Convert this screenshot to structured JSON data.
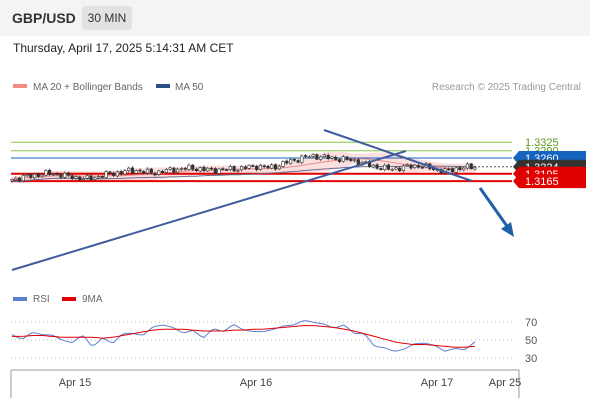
{
  "header": {
    "pair": "GBP/USD",
    "timeframe": "30 MIN",
    "datetime": "Thursday, April 17, 2025 5:14:31 AM CET"
  },
  "price_chart": {
    "legend": [
      {
        "label": "MA 20 + Bollinger Bands",
        "color": "#f28b82"
      },
      {
        "label": "MA 50",
        "color": "#2c4f8a"
      }
    ],
    "credit": "Research © 2025 Trading Central",
    "price_levels": [
      {
        "value": "1.3325",
        "kind": "resistance-target",
        "color": "#7cb342"
      },
      {
        "value": "1.3290",
        "kind": "resistance-target",
        "color": "#7cb342"
      },
      {
        "value": "1.3260",
        "kind": "pivot",
        "color": "#1565c0"
      },
      {
        "value": "1.3224",
        "kind": "last-price",
        "color": "#333333"
      },
      {
        "value": "1.3195",
        "kind": "support-target",
        "color": "#e00000"
      },
      {
        "value": "1.3165",
        "kind": "support-target",
        "color": "#e00000"
      }
    ]
  },
  "rsi_panel": {
    "legend": [
      {
        "label": "RSI",
        "color": "#5b7fd1"
      },
      {
        "label": "9MA",
        "color": "#e00000"
      }
    ],
    "levels": [
      "70",
      "50",
      "30"
    ]
  },
  "x_axis": {
    "labels": [
      "Apr 15",
      "Apr 16",
      "Apr 17",
      "Apr 25"
    ]
  },
  "chart_data": {
    "type": "candlestick",
    "symbol": "GBP/USD",
    "interval": "30 MIN",
    "y_range": [
      1.3135,
      1.334
    ],
    "last_price": 1.3224,
    "pivot": 1.326,
    "resistances": [
      1.329,
      1.3325
    ],
    "supports": [
      1.3195,
      1.3165
    ],
    "bias": "down",
    "x_ticks": [
      "Apr 15",
      "Apr 16",
      "Apr 17",
      "Apr 25"
    ],
    "close_path": [
      1.3172,
      1.318,
      1.3186,
      1.3193,
      1.3196,
      1.3192,
      1.3184,
      1.3178,
      1.3175,
      1.3182,
      1.3192,
      1.3198,
      1.3205,
      1.321,
      1.3203,
      1.3198,
      1.3206,
      1.3212,
      1.3216,
      1.3219,
      1.3214,
      1.321,
      1.3212,
      1.3214,
      1.3216,
      1.3222,
      1.3226,
      1.322,
      1.3226,
      1.3242,
      1.3252,
      1.3264,
      1.3268,
      1.3264,
      1.3258,
      1.3255,
      1.325,
      1.324,
      1.3228,
      1.322,
      1.3214,
      1.3219,
      1.3225,
      1.3228,
      1.3222,
      1.321,
      1.3206,
      1.3216,
      1.3221,
      1.3224
    ],
    "rsi": {
      "levels": [
        70,
        50,
        30
      ],
      "rsi_path": [
        56,
        50,
        60,
        54,
        58,
        47,
        50,
        53,
        45,
        50,
        48,
        56,
        58,
        55,
        64,
        68,
        62,
        60,
        58,
        55,
        60,
        62,
        65,
        63,
        58,
        60,
        62,
        65,
        68,
        70,
        72,
        65,
        66,
        64,
        60,
        55,
        45,
        40,
        38,
        40,
        45,
        48,
        42,
        40,
        38,
        42,
        45
      ],
      "ma_path": [
        54,
        54,
        55,
        55,
        54,
        53,
        53,
        53,
        53,
        52,
        53,
        55,
        57,
        59,
        61,
        62,
        62,
        62,
        61,
        60,
        60,
        60,
        61,
        61,
        62,
        62,
        63,
        64,
        65,
        66,
        66,
        65,
        64,
        62,
        60,
        57,
        54,
        51,
        48,
        46,
        45,
        45,
        44,
        43,
        42,
        42,
        43
      ]
    }
  }
}
